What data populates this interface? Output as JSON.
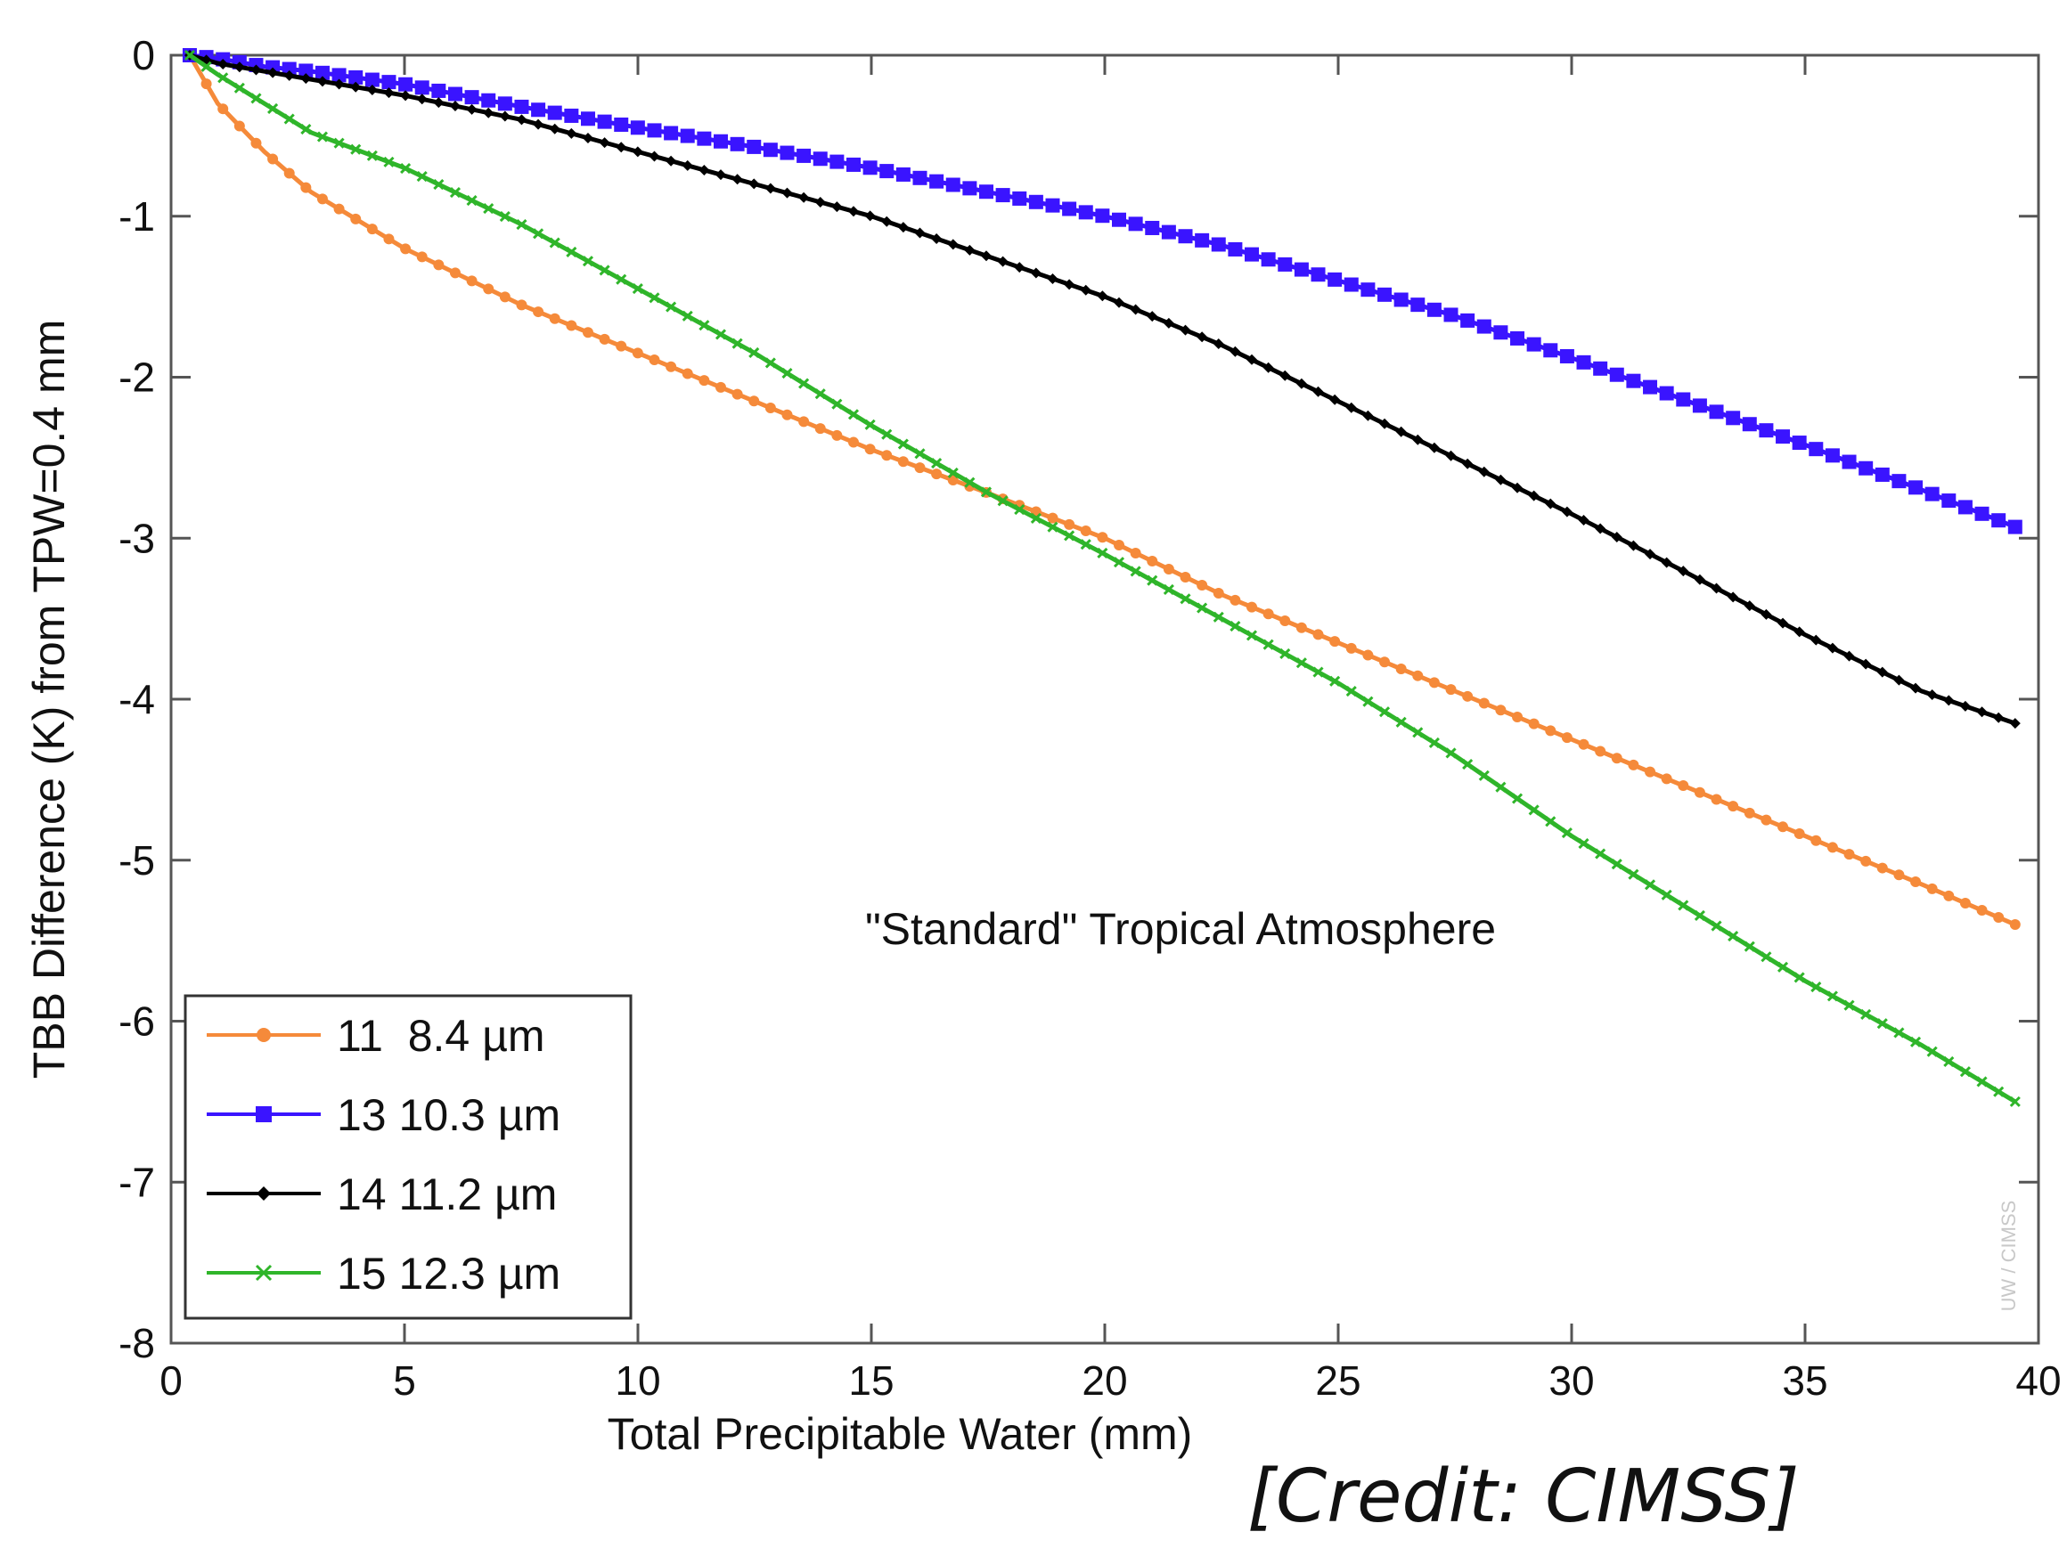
{
  "chart_data": {
    "type": "line",
    "title": "",
    "xlabel": "Total Precipitable Water (mm)",
    "ylabel": "TBB Difference (K) from TPW=0.4 mm",
    "xlim": [
      0,
      40
    ],
    "ylim": [
      -8,
      0
    ],
    "xticks": [
      "0",
      "5",
      "10",
      "15",
      "20",
      "25",
      "30",
      "35",
      "40"
    ],
    "yticks": [
      "0",
      "-1",
      "-2",
      "-3",
      "-4",
      "-5",
      "-6",
      "-7",
      "-8"
    ],
    "grid": false,
    "legend_position": "bottom-left",
    "annotation": "\"Standard\" Tropical Atmosphere",
    "watermark": "UW / CIMSS",
    "x": [
      0.4,
      1,
      2,
      3,
      5,
      7.5,
      10,
      12.5,
      15,
      17.5,
      20,
      22.5,
      25,
      27.5,
      30,
      32.5,
      35,
      37.5,
      39.5
    ],
    "series": [
      {
        "name": "11  8.4 µm",
        "color": "#f58a3a",
        "marker": "circle",
        "values": [
          0,
          -0.3,
          -0.6,
          -0.85,
          -1.2,
          -1.55,
          -1.85,
          -2.15,
          -2.45,
          -2.72,
          -3.0,
          -3.35,
          -3.65,
          -3.95,
          -4.25,
          -4.55,
          -4.85,
          -5.15,
          -5.4
        ]
      },
      {
        "name": "13 10.3 µm",
        "color": "#3a14ff",
        "marker": "square",
        "values": [
          0,
          -0.02,
          -0.07,
          -0.1,
          -0.18,
          -0.32,
          -0.45,
          -0.57,
          -0.7,
          -0.85,
          -1.0,
          -1.18,
          -1.4,
          -1.62,
          -1.88,
          -2.15,
          -2.42,
          -2.7,
          -2.93
        ]
      },
      {
        "name": "14 11.2 µm",
        "color": "#000000",
        "marker": "diamond",
        "values": [
          0,
          -0.05,
          -0.1,
          -0.15,
          -0.25,
          -0.4,
          -0.6,
          -0.8,
          -1.0,
          -1.25,
          -1.5,
          -1.8,
          -2.15,
          -2.5,
          -2.85,
          -3.22,
          -3.6,
          -3.95,
          -4.15
        ]
      },
      {
        "name": "15 12.3 µm",
        "color": "#2fb52a",
        "marker": "x",
        "values": [
          0,
          -0.12,
          -0.3,
          -0.48,
          -0.7,
          -1.05,
          -1.45,
          -1.85,
          -2.3,
          -2.72,
          -3.1,
          -3.5,
          -3.9,
          -4.35,
          -4.85,
          -5.3,
          -5.75,
          -6.15,
          -6.5
        ]
      }
    ]
  },
  "credit": "[Credit: CIMSS]"
}
